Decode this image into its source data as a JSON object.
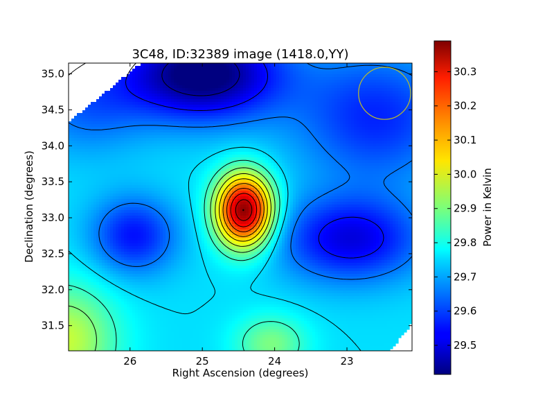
{
  "chart_data": {
    "type": "heatmap",
    "title": "3C48, ID:32389 image (1418.0,YY)",
    "xlabel": "Right Ascension (degrees)",
    "ylabel": "Declination (degrees)",
    "colorbar_label": "Power in Kelvin",
    "colormap": "jet",
    "x_reversed": true,
    "xlim": [
      26.85,
      22.1
    ],
    "ylim": [
      31.15,
      35.15
    ],
    "x_ticks": [
      {
        "value": 26,
        "label": "26"
      },
      {
        "value": 25,
        "label": "25"
      },
      {
        "value": 24,
        "label": "24"
      },
      {
        "value": 23,
        "label": "23"
      }
    ],
    "y_ticks": [
      {
        "value": 31.5,
        "label": "31.5"
      },
      {
        "value": 32.0,
        "label": "32.0"
      },
      {
        "value": 32.5,
        "label": "32.5"
      },
      {
        "value": 33.0,
        "label": "33.0"
      },
      {
        "value": 33.5,
        "label": "33.5"
      },
      {
        "value": 34.0,
        "label": "34.0"
      },
      {
        "value": 34.5,
        "label": "34.5"
      },
      {
        "value": 35.0,
        "label": "35.0"
      }
    ],
    "colorbar_range": [
      29.415,
      30.39
    ],
    "colorbar_ticks": [
      {
        "value": 29.5,
        "label": "29.5"
      },
      {
        "value": 29.6,
        "label": "29.6"
      },
      {
        "value": 29.7,
        "label": "29.7"
      },
      {
        "value": 29.8,
        "label": "29.8"
      },
      {
        "value": 29.9,
        "label": "29.9"
      },
      {
        "value": 30.0,
        "label": "30.0"
      },
      {
        "value": 30.1,
        "label": "30.1"
      },
      {
        "value": 30.2,
        "label": "30.2"
      },
      {
        "value": 30.3,
        "label": "30.3"
      }
    ],
    "contour_levels": [
      29.45,
      29.55,
      29.65,
      29.75,
      29.83,
      29.9,
      29.97,
      30.04,
      30.11,
      30.18,
      30.25,
      30.32,
      30.37
    ],
    "background": 29.75,
    "components": [
      {
        "label": "peak",
        "x": 24.42,
        "y": 33.1,
        "amplitude": 0.64,
        "sigma_x": 0.28,
        "sigma_y": 0.36
      },
      {
        "label": "west-dip",
        "x": 25.95,
        "y": 32.75,
        "amplitude": -0.2,
        "sigma_x": 0.42,
        "sigma_y": 0.38
      },
      {
        "label": "east-dip",
        "x": 22.95,
        "y": 32.7,
        "amplitude": -0.24,
        "sigma_x": 0.7,
        "sigma_y": 0.42
      },
      {
        "label": "north-dip",
        "x": 25.0,
        "y": 35.0,
        "amplitude": -0.37,
        "sigma_x": 0.75,
        "sigma_y": 0.45
      },
      {
        "label": "north-east-dip",
        "x": 22.6,
        "y": 34.4,
        "amplitude": -0.18,
        "sigma_x": 0.8,
        "sigma_y": 0.65
      },
      {
        "label": "north-west-dip",
        "x": 26.6,
        "y": 34.6,
        "amplitude": -0.12,
        "sigma_x": 0.6,
        "sigma_y": 0.5
      },
      {
        "label": "south-west-bump",
        "x": 26.9,
        "y": 31.3,
        "amplitude": 0.22,
        "sigma_x": 0.5,
        "sigma_y": 0.55
      },
      {
        "label": "south-bump",
        "x": 24.05,
        "y": 31.25,
        "amplitude": 0.15,
        "sigma_x": 0.35,
        "sigma_y": 0.28
      }
    ],
    "beam": {
      "x": 22.48,
      "y": 34.73,
      "radius_deg": 0.36,
      "color": "#bfbf26"
    }
  }
}
